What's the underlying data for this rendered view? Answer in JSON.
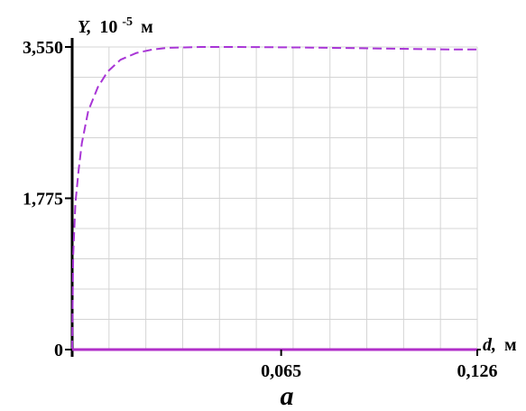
{
  "chart_data": {
    "type": "line",
    "title": "",
    "ylabel": {
      "symbol": "Y,",
      "unit_base": "10",
      "unit_exp": "-5",
      "unit": "м"
    },
    "xlabel": {
      "symbol": "d,",
      "unit": "м"
    },
    "y_ticks": [
      "3,550",
      "1,775",
      "0"
    ],
    "x_ticks": [
      "0,065",
      "0,126"
    ],
    "xlim": [
      0,
      0.126
    ],
    "ylim": [
      0,
      3.55
    ],
    "grid": true,
    "series": [
      {
        "style": "dashed",
        "color": "#a835d6",
        "x": [
          0,
          0.0003,
          0.001,
          0.002,
          0.003,
          0.005,
          0.008,
          0.011,
          0.015,
          0.02,
          0.025,
          0.03,
          0.035,
          0.04,
          0.05,
          0.06,
          0.07,
          0.08,
          0.09,
          0.1,
          0.11,
          0.12,
          0.126
        ],
        "y": [
          0,
          1.1,
          1.72,
          2.1,
          2.42,
          2.8,
          3.08,
          3.26,
          3.4,
          3.48,
          3.52,
          3.54,
          3.545,
          3.55,
          3.55,
          3.548,
          3.545,
          3.54,
          3.535,
          3.53,
          3.525,
          3.52,
          3.52
        ]
      },
      {
        "style": "solid",
        "color": "#b12fc9",
        "x": [
          0,
          0.126
        ],
        "y": [
          0,
          0
        ]
      }
    ],
    "caption": "a"
  }
}
